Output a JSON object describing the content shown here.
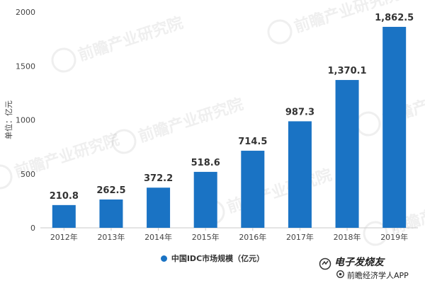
{
  "chart_data": {
    "type": "bar",
    "categories": [
      "2012年",
      "2013年",
      "2014年",
      "2015年",
      "2016年",
      "2017年",
      "2018年",
      "2019年"
    ],
    "values": [
      210.8,
      262.5,
      372.2,
      518.6,
      714.5,
      987.3,
      1370.1,
      1862.5
    ],
    "value_labels": [
      "210.8",
      "262.5",
      "372.2",
      "518.6",
      "714.5",
      "987.3",
      "1,370.1",
      "1,862.5"
    ],
    "ylabel": "单位：亿元",
    "ylim": [
      0,
      2000
    ],
    "yticks": [
      0,
      500,
      1000,
      1500,
      2000
    ],
    "grid": false,
    "legend": {
      "position": "bottom-center",
      "entries": [
        "中国IDC市场规模（亿元）"
      ]
    },
    "bar_color": "#1a73c4"
  },
  "legend_label": "中国IDC市场规模（亿元）",
  "watermark": {
    "source_brand": "电子发烧友",
    "source_app": "前瞻经济学人APP",
    "background_logo": "前瞻产业研究院"
  },
  "icons": {
    "watermark_logo": "brand-logo-icon",
    "watermark_eye": "eye-logo-icon"
  }
}
